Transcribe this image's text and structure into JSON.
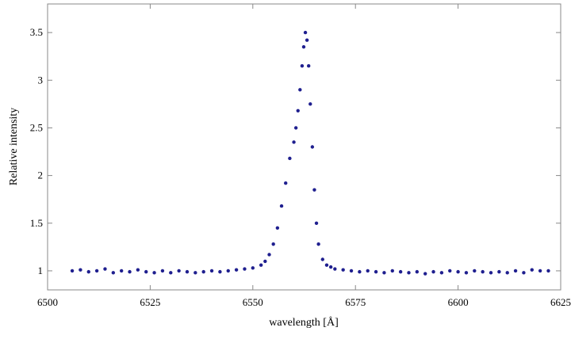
{
  "chart_data": {
    "type": "scatter",
    "title": "",
    "xlabel": "wavelength [Å]",
    "ylabel": "Relative intensity",
    "xlim": [
      6500,
      6625
    ],
    "ylim": [
      0.8,
      3.8
    ],
    "xticks": [
      6500,
      6525,
      6550,
      6575,
      6600,
      6625
    ],
    "xtick_labels": [
      "6500",
      "6525",
      "6550",
      "6575",
      "6600",
      "6625"
    ],
    "yticks": [
      1,
      1.5,
      2,
      2.5,
      3,
      3.5
    ],
    "ytick_labels": [
      "1",
      "1.5",
      "2",
      "2.5",
      "3",
      "3.5"
    ],
    "grid": false,
    "legend": "none",
    "marker_color": "#1f1f8f",
    "series": [
      {
        "x": [
          6506,
          6508,
          6510,
          6512,
          6514,
          6516,
          6518,
          6520,
          6522,
          6524,
          6526,
          6528,
          6530,
          6532,
          6534,
          6536,
          6538,
          6540,
          6542,
          6544,
          6546,
          6548,
          6550,
          6552,
          6553,
          6554,
          6555,
          6556,
          6557,
          6558,
          6559,
          6560,
          6560.5,
          6561,
          6561.5,
          6562,
          6562.4,
          6562.8,
          6563.2,
          6563.6,
          6564,
          6564.5,
          6565,
          6565.5,
          6566,
          6567,
          6568,
          6569,
          6570,
          6572,
          6574,
          6576,
          6578,
          6580,
          6582,
          6584,
          6586,
          6588,
          6590,
          6592,
          6594,
          6596,
          6598,
          6600,
          6602,
          6604,
          6606,
          6608,
          6610,
          6612,
          6614,
          6616,
          6618,
          6620,
          6622
        ],
        "y": [
          1.0,
          1.01,
          0.99,
          1.0,
          1.02,
          0.98,
          1.0,
          0.99,
          1.01,
          0.99,
          0.98,
          1.0,
          0.98,
          1.0,
          0.99,
          0.98,
          0.99,
          1.0,
          0.99,
          1.0,
          1.01,
          1.02,
          1.03,
          1.06,
          1.1,
          1.17,
          1.28,
          1.45,
          1.68,
          1.92,
          2.18,
          2.35,
          2.5,
          2.68,
          2.9,
          3.15,
          3.35,
          3.5,
          3.42,
          3.15,
          2.75,
          2.3,
          1.85,
          1.5,
          1.28,
          1.12,
          1.06,
          1.04,
          1.02,
          1.01,
          1.0,
          0.99,
          1.0,
          0.99,
          0.98,
          1.0,
          0.99,
          0.98,
          0.99,
          0.97,
          0.99,
          0.98,
          1.0,
          0.99,
          0.98,
          1.0,
          0.99,
          0.98,
          0.99,
          0.98,
          1.0,
          0.98,
          1.01,
          1.0,
          1.0
        ]
      }
    ]
  }
}
